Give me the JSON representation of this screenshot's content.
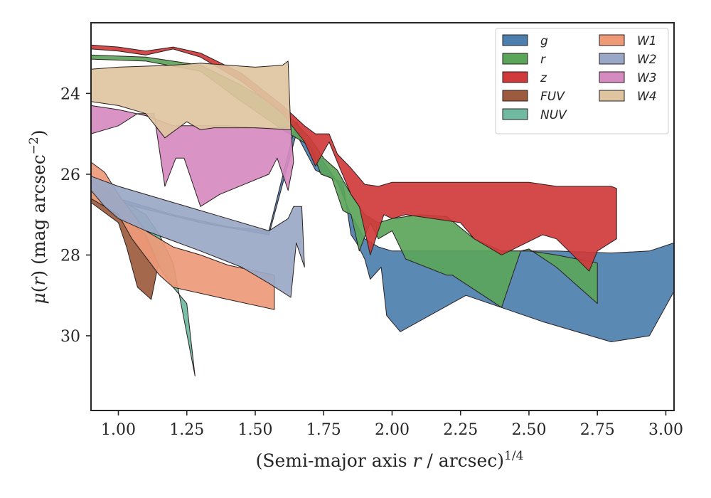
{
  "chart_data": {
    "type": "area",
    "xlabel": "(Semi-major axis r / arcsec)^1/4",
    "ylabel": "μ(r) (mag arcsec⁻²)",
    "xlim": [
      0.9,
      3.03
    ],
    "ylim": [
      31.85,
      22.25
    ],
    "y_inverted": true,
    "grid": false,
    "legend_position": "top-right",
    "legend_columns": 2,
    "x_ticks": [
      1.0,
      1.25,
      1.5,
      1.75,
      2.0,
      2.25,
      2.5,
      2.75,
      3.0
    ],
    "x_tick_labels": [
      "1.00",
      "1.25",
      "1.50",
      "1.75",
      "2.00",
      "2.25",
      "2.50",
      "2.75",
      "3.00"
    ],
    "y_ticks": [
      24,
      26,
      28,
      30
    ],
    "y_tick_labels": [
      "24",
      "26",
      "28",
      "30"
    ],
    "series": [
      {
        "name": "g",
        "color": "#4c7fae",
        "upper": [
          [
            0.9,
            26.1
          ],
          [
            1.0,
            26.6
          ],
          [
            1.2,
            27.0
          ],
          [
            1.4,
            27.3
          ],
          [
            1.55,
            27.4
          ],
          [
            1.65,
            24.7
          ],
          [
            1.7,
            25.3
          ],
          [
            1.75,
            25.7
          ],
          [
            1.8,
            26.2
          ],
          [
            1.85,
            27.0
          ],
          [
            1.9,
            27.6
          ],
          [
            1.95,
            27.8
          ],
          [
            2.0,
            27.9
          ],
          [
            2.2,
            27.9
          ],
          [
            2.4,
            27.9
          ],
          [
            2.6,
            27.9
          ],
          [
            2.8,
            27.95
          ],
          [
            2.94,
            27.9
          ],
          [
            3.03,
            27.7
          ]
        ],
        "lower": [
          [
            3.03,
            28.9
          ],
          [
            2.94,
            30.0
          ],
          [
            2.8,
            30.15
          ],
          [
            2.55,
            29.65
          ],
          [
            2.27,
            29.0
          ],
          [
            2.03,
            29.9
          ],
          [
            1.98,
            29.5
          ],
          [
            1.96,
            28.3
          ],
          [
            1.92,
            28.6
          ],
          [
            1.9,
            28.1
          ],
          [
            1.87,
            27.7
          ],
          [
            1.85,
            27.5
          ],
          [
            1.82,
            26.2
          ],
          [
            1.78,
            26.1
          ],
          [
            1.72,
            25.9
          ],
          [
            1.65,
            25.0
          ],
          [
            1.55,
            27.5
          ],
          [
            1.3,
            27.2
          ],
          [
            1.0,
            26.7
          ],
          [
            0.9,
            26.2
          ]
        ]
      },
      {
        "name": "r",
        "color": "#5ba55b",
        "upper": [
          [
            0.9,
            23.05
          ],
          [
            1.1,
            23.1
          ],
          [
            1.3,
            23.3
          ],
          [
            1.45,
            23.8
          ],
          [
            1.6,
            24.4
          ],
          [
            1.7,
            25.1
          ],
          [
            1.75,
            25.6
          ],
          [
            1.8,
            25.9
          ],
          [
            1.85,
            26.5
          ],
          [
            1.9,
            27.0
          ],
          [
            1.95,
            27.2
          ],
          [
            2.0,
            27.1
          ],
          [
            2.1,
            27.0
          ],
          [
            2.2,
            27.05
          ],
          [
            2.3,
            27.6
          ],
          [
            2.4,
            27.9
          ],
          [
            2.5,
            27.9
          ],
          [
            2.6,
            28.0
          ],
          [
            2.75,
            28.2
          ]
        ],
        "lower": [
          [
            2.75,
            29.2
          ],
          [
            2.6,
            28.3
          ],
          [
            2.5,
            27.85
          ],
          [
            2.47,
            27.9
          ],
          [
            2.4,
            29.3
          ],
          [
            2.22,
            28.5
          ],
          [
            2.2,
            28.5
          ],
          [
            2.05,
            28.1
          ],
          [
            2.0,
            27.4
          ],
          [
            1.95,
            27.6
          ],
          [
            1.92,
            27.2
          ],
          [
            1.88,
            27.9
          ],
          [
            1.85,
            27.0
          ],
          [
            1.82,
            26.9
          ],
          [
            1.78,
            26.1
          ],
          [
            1.74,
            26.0
          ],
          [
            1.7,
            25.3
          ],
          [
            1.6,
            24.9
          ],
          [
            1.45,
            24.2
          ],
          [
            1.3,
            23.45
          ],
          [
            1.1,
            23.2
          ],
          [
            0.9,
            23.15
          ]
        ]
      },
      {
        "name": "z",
        "color": "#d03a3a",
        "upper": [
          [
            0.9,
            22.8
          ],
          [
            1.0,
            22.85
          ],
          [
            1.1,
            22.95
          ],
          [
            1.2,
            22.85
          ],
          [
            1.3,
            23.0
          ],
          [
            1.45,
            23.5
          ],
          [
            1.6,
            24.3
          ],
          [
            1.68,
            24.8
          ],
          [
            1.72,
            25.0
          ],
          [
            1.77,
            25.0
          ],
          [
            1.8,
            25.5
          ],
          [
            1.85,
            25.85
          ],
          [
            1.9,
            26.25
          ],
          [
            1.95,
            26.3
          ],
          [
            2.0,
            26.2
          ],
          [
            2.2,
            26.2
          ],
          [
            2.45,
            26.2
          ],
          [
            2.5,
            26.2
          ],
          [
            2.6,
            26.3
          ],
          [
            2.8,
            26.3
          ],
          [
            2.82,
            26.35
          ]
        ],
        "lower": [
          [
            2.82,
            27.6
          ],
          [
            2.75,
            27.9
          ],
          [
            2.72,
            28.4
          ],
          [
            2.6,
            27.6
          ],
          [
            2.55,
            27.5
          ],
          [
            2.4,
            28.0
          ],
          [
            2.3,
            27.6
          ],
          [
            2.25,
            27.2
          ],
          [
            2.05,
            27.0
          ],
          [
            2.0,
            27.1
          ],
          [
            1.97,
            27.0
          ],
          [
            1.92,
            28.0
          ],
          [
            1.88,
            26.8
          ],
          [
            1.85,
            26.5
          ],
          [
            1.8,
            25.7
          ],
          [
            1.77,
            25.2
          ],
          [
            1.72,
            25.8
          ],
          [
            1.68,
            25.2
          ],
          [
            1.6,
            24.5
          ],
          [
            1.45,
            23.7
          ],
          [
            1.3,
            23.1
          ],
          [
            1.2,
            22.9
          ],
          [
            1.1,
            23.05
          ],
          [
            1.0,
            22.95
          ],
          [
            0.9,
            22.9
          ]
        ]
      },
      {
        "name": "FUV",
        "color": "#9c5b3e",
        "upper": [
          [
            0.9,
            26.5
          ],
          [
            0.95,
            26.6
          ],
          [
            1.0,
            26.8
          ],
          [
            1.05,
            27.2
          ],
          [
            1.1,
            27.5
          ],
          [
            1.15,
            27.8
          ]
        ],
        "lower": [
          [
            1.15,
            28.1
          ],
          [
            1.12,
            29.1
          ],
          [
            1.07,
            28.8
          ],
          [
            1.03,
            27.8
          ],
          [
            1.0,
            27.2
          ],
          [
            0.9,
            26.7
          ]
        ]
      },
      {
        "name": "NUV",
        "color": "#6fbaa0",
        "upper": [
          [
            0.9,
            26.3
          ],
          [
            0.95,
            26.5
          ],
          [
            1.0,
            26.6
          ],
          [
            1.1,
            27.0
          ],
          [
            1.15,
            27.5
          ],
          [
            1.2,
            28.2
          ]
        ],
        "lower": [
          [
            1.28,
            31.0
          ],
          [
            1.25,
            29.2
          ],
          [
            1.2,
            28.8
          ],
          [
            1.15,
            28.3
          ],
          [
            1.1,
            27.5
          ],
          [
            1.0,
            27.0
          ],
          [
            0.9,
            26.6
          ]
        ]
      },
      {
        "name": "W1",
        "color": "#ee9a78",
        "upper": [
          [
            0.9,
            25.7
          ],
          [
            0.95,
            25.95
          ],
          [
            1.0,
            26.5
          ],
          [
            1.1,
            27.4
          ],
          [
            1.2,
            27.8
          ],
          [
            1.3,
            28.0
          ],
          [
            1.4,
            28.25
          ],
          [
            1.57,
            28.5
          ]
        ],
        "lower": [
          [
            1.57,
            29.35
          ],
          [
            1.4,
            29.1
          ],
          [
            1.2,
            28.8
          ],
          [
            1.15,
            28.5
          ],
          [
            1.05,
            27.6
          ],
          [
            1.0,
            27.0
          ],
          [
            0.9,
            26.6
          ]
        ]
      },
      {
        "name": "W2",
        "color": "#9aa8c7",
        "upper": [
          [
            0.9,
            26.05
          ],
          [
            1.0,
            26.3
          ],
          [
            1.2,
            26.7
          ],
          [
            1.4,
            27.1
          ],
          [
            1.55,
            27.4
          ],
          [
            1.62,
            27.1
          ],
          [
            1.64,
            26.8
          ],
          [
            1.67,
            26.8
          ]
        ],
        "lower": [
          [
            1.68,
            28.3
          ],
          [
            1.65,
            27.7
          ],
          [
            1.63,
            29.05
          ],
          [
            1.55,
            28.7
          ],
          [
            1.45,
            28.3
          ],
          [
            1.3,
            27.9
          ],
          [
            1.1,
            27.4
          ],
          [
            1.0,
            27.1
          ],
          [
            0.95,
            26.8
          ],
          [
            0.9,
            26.4
          ]
        ]
      },
      {
        "name": "W3",
        "color": "#d68bc0",
        "upper": [
          [
            0.9,
            24.3
          ],
          [
            1.0,
            24.4
          ],
          [
            1.1,
            24.55
          ],
          [
            1.2,
            24.8
          ],
          [
            1.3,
            24.8
          ],
          [
            1.4,
            24.8
          ],
          [
            1.5,
            24.85
          ],
          [
            1.6,
            24.85
          ],
          [
            1.63,
            24.8
          ]
        ],
        "lower": [
          [
            1.64,
            25.7
          ],
          [
            1.62,
            26.4
          ],
          [
            1.58,
            25.6
          ],
          [
            1.55,
            26.0
          ],
          [
            1.37,
            26.5
          ],
          [
            1.3,
            26.8
          ],
          [
            1.24,
            25.6
          ],
          [
            1.21,
            25.6
          ],
          [
            1.17,
            26.3
          ],
          [
            1.13,
            24.5
          ],
          [
            1.07,
            24.5
          ],
          [
            1.0,
            24.8
          ],
          [
            0.9,
            25.0
          ]
        ]
      },
      {
        "name": "W4",
        "color": "#dfc4a0",
        "upper": [
          [
            0.9,
            23.4
          ],
          [
            1.0,
            23.35
          ],
          [
            1.2,
            23.3
          ],
          [
            1.3,
            23.25
          ],
          [
            1.4,
            23.3
          ],
          [
            1.5,
            23.35
          ],
          [
            1.6,
            23.3
          ],
          [
            1.62,
            23.2
          ]
        ],
        "lower": [
          [
            1.63,
            24.9
          ],
          [
            1.5,
            24.85
          ],
          [
            1.35,
            24.85
          ],
          [
            1.3,
            24.9
          ],
          [
            1.25,
            24.7
          ],
          [
            1.17,
            25.1
          ],
          [
            1.1,
            24.5
          ],
          [
            1.0,
            24.3
          ],
          [
            0.9,
            24.2
          ]
        ]
      }
    ]
  }
}
